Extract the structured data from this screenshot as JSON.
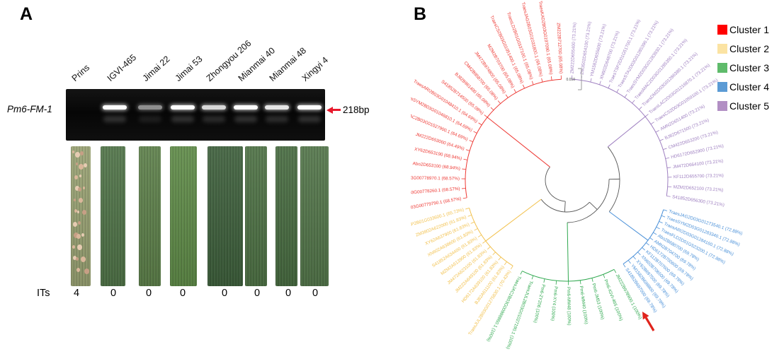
{
  "panel_a": {
    "label": "A",
    "gene_label": "Pm6-FM-1",
    "band_size": "218bp",
    "arrow_color": "#e8192c",
    "its_label": "ITs",
    "lanes": [
      {
        "name": "Prins",
        "band": false,
        "it": "4",
        "leaf": "infected"
      },
      {
        "name": "IGVI-465",
        "band": true,
        "it": "0",
        "leaf": "healthy"
      },
      {
        "name": "Jimai 22",
        "band": true,
        "it": "0",
        "leaf": "healthy"
      },
      {
        "name": "Jimai 53",
        "band": true,
        "it": "0",
        "leaf": "healthy"
      },
      {
        "name": "Zhongyou 206",
        "band": true,
        "it": "0",
        "leaf": "healthy"
      },
      {
        "name": "Mianmai 40",
        "band": true,
        "it": "0",
        "leaf": "healthy"
      },
      {
        "name": "Mianmai 48",
        "band": true,
        "it": "0",
        "leaf": "healthy"
      },
      {
        "name": "Xingyi 4",
        "band": true,
        "it": "0",
        "leaf": "healthy"
      }
    ]
  },
  "panel_b": {
    "label": "B",
    "scale_label": "0.010",
    "arrow_target": "Pm6-IGVI-465 (100%)",
    "arrow_color": "#e0241c",
    "legend": [
      {
        "label": "Cluster 1",
        "color": "#ff0000"
      },
      {
        "label": "Cluster 2",
        "color": "#fbe3a3"
      },
      {
        "label": "Cluster 3",
        "color": "#5fbb6b"
      },
      {
        "label": "Cluster 4",
        "color": "#5b9bd5"
      },
      {
        "label": "Cluster 5",
        "color": "#b28fc4"
      }
    ],
    "clusters": [
      {
        "name": "Cluster 1",
        "color": "#ed3833",
        "leaves": [
          "TraesDM2A03G00779790.1 (68.57%)",
          "TraesSTA2A03G00778260.1 (68.57%)",
          "TraesMAC2A03G00778970.1 (68.57%)",
          "Abo2D653100 (68.94%)",
          "XY62D653190 (68.94%)",
          "JM222D653000 (64.49%)",
          "TraesMAC2B03G01027900.1 (64.69%)",
          "TraesSYM2B03G01046810.1 (64.69%)",
          "TraesARI2B03G01048410.1 (64.69%)",
          "S41852B714500 (65.08%)",
          "BJ82B961400 (65.08%)",
          "CM42B958700 (65.08%)",
          "JM472B974800 (65.08%)",
          "MZM2B703700 (65.08%)",
          "TraesCS2B03G01051400.1 (65.08%)",
          "TraesLD2B01G0337100.1 (65.08%)",
          "TraesJAG2B03G01031800.1 (65.08%)",
          "TraesKAD2B03G0197090.1 (65.08%)",
          "ZM222B712700 (65.08%)"
        ]
      },
      {
        "name": "Cluster 2",
        "color": "#f2c14e",
        "leaves": [
          "TraesJUL2B03G01275830.1 (70.43%)",
          "BJ82A611100 (61.83%)",
          "HD6172A639100 (61.83%)",
          "JM222A649100 (61.83%)",
          "JM472A623100 (61.83%)",
          "MZM2A613900 (61.83%)",
          "S41852A634400 (61.83%)",
          "XN602A638600 (61.83%)",
          "XY62A637900 (61.83%)",
          "ZM3802A622000 (61.83%)",
          "TraesTSP2B01G033600.1 (65.73%)"
        ]
      },
      {
        "name": "Cluster 3",
        "color": "#2fa84f",
        "leaves": [
          "JM222B978900.1 (100%)",
          "Pm6-IGVI-465 (100%)",
          "Pm6-JM53 (100%)",
          "Pm6-MM40 (100%)",
          "Pm6-MM48 (100%)",
          "Pm6-XY4 (100%)",
          "Pm6-ZY206 (100%)",
          "TraesJUL2B03G01027190.1 (100%)",
          "TraesJAC2B03G00988860.1 (100%)"
        ]
      },
      {
        "name": "Cluster 4",
        "color": "#4a90d8",
        "leaves": [
          "TraesJAG2D03G01273540.1 (72.88%)",
          "TraesSYM2D03G01283340.1 (72.88%)",
          "TraesARI2D03G01284160.1 (72.88%)",
          "TraesFLD2D01G523200.1 (72.88%)",
          "Abo2B680700 (69.78%)",
          "AMN2B704700 (69.78%)",
          "HD6172B700600 (69.78%)",
          "KF112B707600 (69.78%)",
          "XN602B706500 (69.78%)",
          "XY62B697500 (69.78%)",
          "YM1582B698800 (69.78%)",
          "S41852B697000 (69.78%)"
        ]
      },
      {
        "name": "Cluster 5",
        "color": "#9e7fc0",
        "leaves": [
          "ZM222D655400 (73.21%)",
          "ZM3502D654100 (73.21%)",
          "YM1582D655600 (73.21%)",
          "XN602D648700 (73.21%)",
          "TraesTSP2D01G51700.1 (73.21%)",
          "TraesSTA2D03G01285390.1 (73.21%)",
          "TraesSYM2D03G01283930.1 (73.21%)",
          "TraesMAC2D03G01285350.1 (73.21%)",
          "TraesDM2D03G01286380.1 (73.21%)",
          "TraesLAC2D03G01216870.1 (73.21%)",
          "TraesCS2D03G01059100.1 (73.21%)",
          "AMN2D651400 (73.21%)",
          "BJ82D671500 (73.21%)",
          "CM422D653200 (73.21%)",
          "HD6172D652900 (73.21%)",
          "JM472D664100 (73.21%)",
          "KF112D655700 (73.21%)",
          "MZM2D652100 (73.21%)",
          "S41852D656300 (73.21%)"
        ]
      }
    ]
  }
}
